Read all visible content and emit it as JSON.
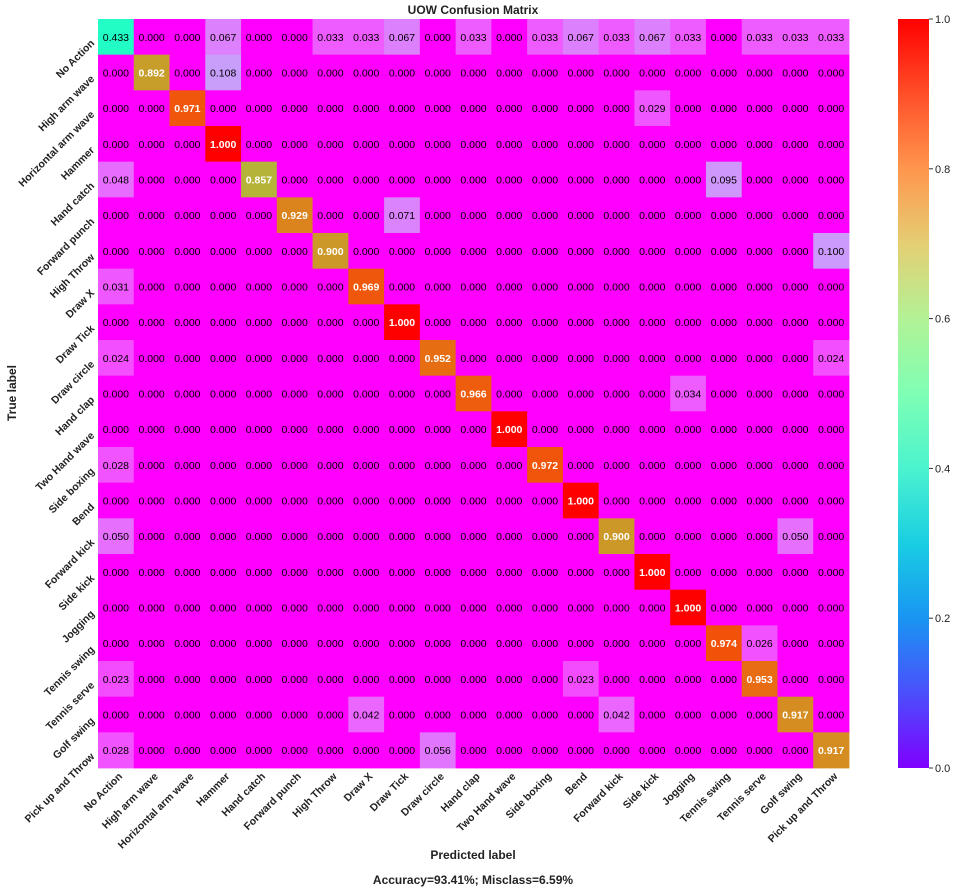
{
  "chart_data": {
    "type": "heatmap",
    "title": "UOW Confusion Matrix",
    "xlabel": "Predicted label",
    "ylabel": "True label",
    "footer": "Accuracy=93.41%; Misclass=6.59%",
    "labels": [
      "No Action",
      "High arm wave",
      "Horizontal arm wave",
      "Hammer",
      "Hand catch",
      "Forward punch",
      "High Throw",
      "Draw X",
      "Draw Tick",
      "Draw circle",
      "Hand clap",
      "Two Hand wave",
      "Side boxing",
      "Bend",
      "Forward kick",
      "Side kick",
      "Jogging",
      "Tennis swing",
      "Tennis serve",
      "Golf swing",
      "Pick up and Throw"
    ],
    "matrix": [
      [
        "0.433",
        "0.000",
        "0.000",
        "0.067",
        "0.000",
        "0.000",
        "0.033",
        "0.033",
        "0.067",
        "0.000",
        "0.033",
        "0.000",
        "0.033",
        "0.067",
        "0.033",
        "0.067",
        "0.033",
        "0.000",
        "0.033",
        "0.033",
        "0.033"
      ],
      [
        "0.000",
        "0.892",
        "0.000",
        "0.108",
        "0.000",
        "0.000",
        "0.000",
        "0.000",
        "0.000",
        "0.000",
        "0.000",
        "0.000",
        "0.000",
        "0.000",
        "0.000",
        "0.000",
        "0.000",
        "0.000",
        "0.000",
        "0.000",
        "0.000"
      ],
      [
        "0.000",
        "0.000",
        "0.971",
        "0.000",
        "0.000",
        "0.000",
        "0.000",
        "0.000",
        "0.000",
        "0.000",
        "0.000",
        "0.000",
        "0.000",
        "0.000",
        "0.000",
        "0.029",
        "0.000",
        "0.000",
        "0.000",
        "0.000",
        "0.000"
      ],
      [
        "0.000",
        "0.000",
        "0.000",
        "1.000",
        "0.000",
        "0.000",
        "0.000",
        "0.000",
        "0.000",
        "0.000",
        "0.000",
        "0.000",
        "0.000",
        "0.000",
        "0.000",
        "0.000",
        "0.000",
        "0.000",
        "0.000",
        "0.000",
        "0.000"
      ],
      [
        "0.048",
        "0.000",
        "0.000",
        "0.000",
        "0.857",
        "0.000",
        "0.000",
        "0.000",
        "0.000",
        "0.000",
        "0.000",
        "0.000",
        "0.000",
        "0.000",
        "0.000",
        "0.000",
        "0.000",
        "0.095",
        "0.000",
        "0.000",
        "0.000"
      ],
      [
        "0.000",
        "0.000",
        "0.000",
        "0.000",
        "0.000",
        "0.929",
        "0.000",
        "0.000",
        "0.071",
        "0.000",
        "0.000",
        "0.000",
        "0.000",
        "0.000",
        "0.000",
        "0.000",
        "0.000",
        "0.000",
        "0.000",
        "0.000",
        "0.000"
      ],
      [
        "0.000",
        "0.000",
        "0.000",
        "0.000",
        "0.000",
        "0.000",
        "0.900",
        "0.000",
        "0.000",
        "0.000",
        "0.000",
        "0.000",
        "0.000",
        "0.000",
        "0.000",
        "0.000",
        "0.000",
        "0.000",
        "0.000",
        "0.000",
        "0.100"
      ],
      [
        "0.031",
        "0.000",
        "0.000",
        "0.000",
        "0.000",
        "0.000",
        "0.000",
        "0.969",
        "0.000",
        "0.000",
        "0.000",
        "0.000",
        "0.000",
        "0.000",
        "0.000",
        "0.000",
        "0.000",
        "0.000",
        "0.000",
        "0.000",
        "0.000"
      ],
      [
        "0.000",
        "0.000",
        "0.000",
        "0.000",
        "0.000",
        "0.000",
        "0.000",
        "0.000",
        "1.000",
        "0.000",
        "0.000",
        "0.000",
        "0.000",
        "0.000",
        "0.000",
        "0.000",
        "0.000",
        "0.000",
        "0.000",
        "0.000",
        "0.000"
      ],
      [
        "0.024",
        "0.000",
        "0.000",
        "0.000",
        "0.000",
        "0.000",
        "0.000",
        "0.000",
        "0.000",
        "0.952",
        "0.000",
        "0.000",
        "0.000",
        "0.000",
        "0.000",
        "0.000",
        "0.000",
        "0.000",
        "0.000",
        "0.000",
        "0.024"
      ],
      [
        "0.000",
        "0.000",
        "0.000",
        "0.000",
        "0.000",
        "0.000",
        "0.000",
        "0.000",
        "0.000",
        "0.000",
        "0.966",
        "0.000",
        "0.000",
        "0.000",
        "0.000",
        "0.000",
        "0.034",
        "0.000",
        "0.000",
        "0.000",
        "0.000"
      ],
      [
        "0.000",
        "0.000",
        "0.000",
        "0.000",
        "0.000",
        "0.000",
        "0.000",
        "0.000",
        "0.000",
        "0.000",
        "0.000",
        "1.000",
        "0.000",
        "0.000",
        "0.000",
        "0.000",
        "0.000",
        "0.000",
        "0.000",
        "0.000",
        "0.000"
      ],
      [
        "0.028",
        "0.000",
        "0.000",
        "0.000",
        "0.000",
        "0.000",
        "0.000",
        "0.000",
        "0.000",
        "0.000",
        "0.000",
        "0.000",
        "0.972",
        "0.000",
        "0.000",
        "0.000",
        "0.000",
        "0.000",
        "0.000",
        "0.000",
        "0.000"
      ],
      [
        "0.000",
        "0.000",
        "0.000",
        "0.000",
        "0.000",
        "0.000",
        "0.000",
        "0.000",
        "0.000",
        "0.000",
        "0.000",
        "0.000",
        "0.000",
        "1.000",
        "0.000",
        "0.000",
        "0.000",
        "0.000",
        "0.000",
        "0.000",
        "0.000"
      ],
      [
        "0.050",
        "0.000",
        "0.000",
        "0.000",
        "0.000",
        "0.000",
        "0.000",
        "0.000",
        "0.000",
        "0.000",
        "0.000",
        "0.000",
        "0.000",
        "0.000",
        "0.900",
        "0.000",
        "0.000",
        "0.000",
        "0.000",
        "0.050",
        "0.000"
      ],
      [
        "0.000",
        "0.000",
        "0.000",
        "0.000",
        "0.000",
        "0.000",
        "0.000",
        "0.000",
        "0.000",
        "0.000",
        "0.000",
        "0.000",
        "0.000",
        "0.000",
        "0.000",
        "1.000",
        "0.000",
        "0.000",
        "0.000",
        "0.000",
        "0.000"
      ],
      [
        "0.000",
        "0.000",
        "0.000",
        "0.000",
        "0.000",
        "0.000",
        "0.000",
        "0.000",
        "0.000",
        "0.000",
        "0.000",
        "0.000",
        "0.000",
        "0.000",
        "0.000",
        "0.000",
        "1.000",
        "0.000",
        "0.000",
        "0.000",
        "0.000"
      ],
      [
        "0.000",
        "0.000",
        "0.000",
        "0.000",
        "0.000",
        "0.000",
        "0.000",
        "0.000",
        "0.000",
        "0.000",
        "0.000",
        "0.000",
        "0.000",
        "0.000",
        "0.000",
        "0.000",
        "0.000",
        "0.974",
        "0.026",
        "0.000",
        "0.000"
      ],
      [
        "0.023",
        "0.000",
        "0.000",
        "0.000",
        "0.000",
        "0.000",
        "0.000",
        "0.000",
        "0.000",
        "0.000",
        "0.000",
        "0.000",
        "0.000",
        "0.023",
        "0.000",
        "0.000",
        "0.000",
        "0.000",
        "0.953",
        "0.000",
        "0.000"
      ],
      [
        "0.000",
        "0.000",
        "0.000",
        "0.000",
        "0.000",
        "0.000",
        "0.000",
        "0.042",
        "0.000",
        "0.000",
        "0.000",
        "0.000",
        "0.000",
        "0.000",
        "0.042",
        "0.000",
        "0.000",
        "0.000",
        "0.000",
        "0.917",
        "0.000"
      ],
      [
        "0.028",
        "0.000",
        "0.000",
        "0.000",
        "0.000",
        "0.000",
        "0.000",
        "0.000",
        "0.000",
        "0.056",
        "0.000",
        "0.000",
        "0.000",
        "0.000",
        "0.000",
        "0.000",
        "0.000",
        "0.000",
        "0.000",
        "0.000",
        "0.917"
      ]
    ],
    "colormap": "rainbow",
    "vmin": 0,
    "vmax": 1,
    "colorbar_ticks": [
      "0.0",
      "0.2",
      "0.4",
      "0.6",
      "0.8",
      "1.0"
    ]
  }
}
